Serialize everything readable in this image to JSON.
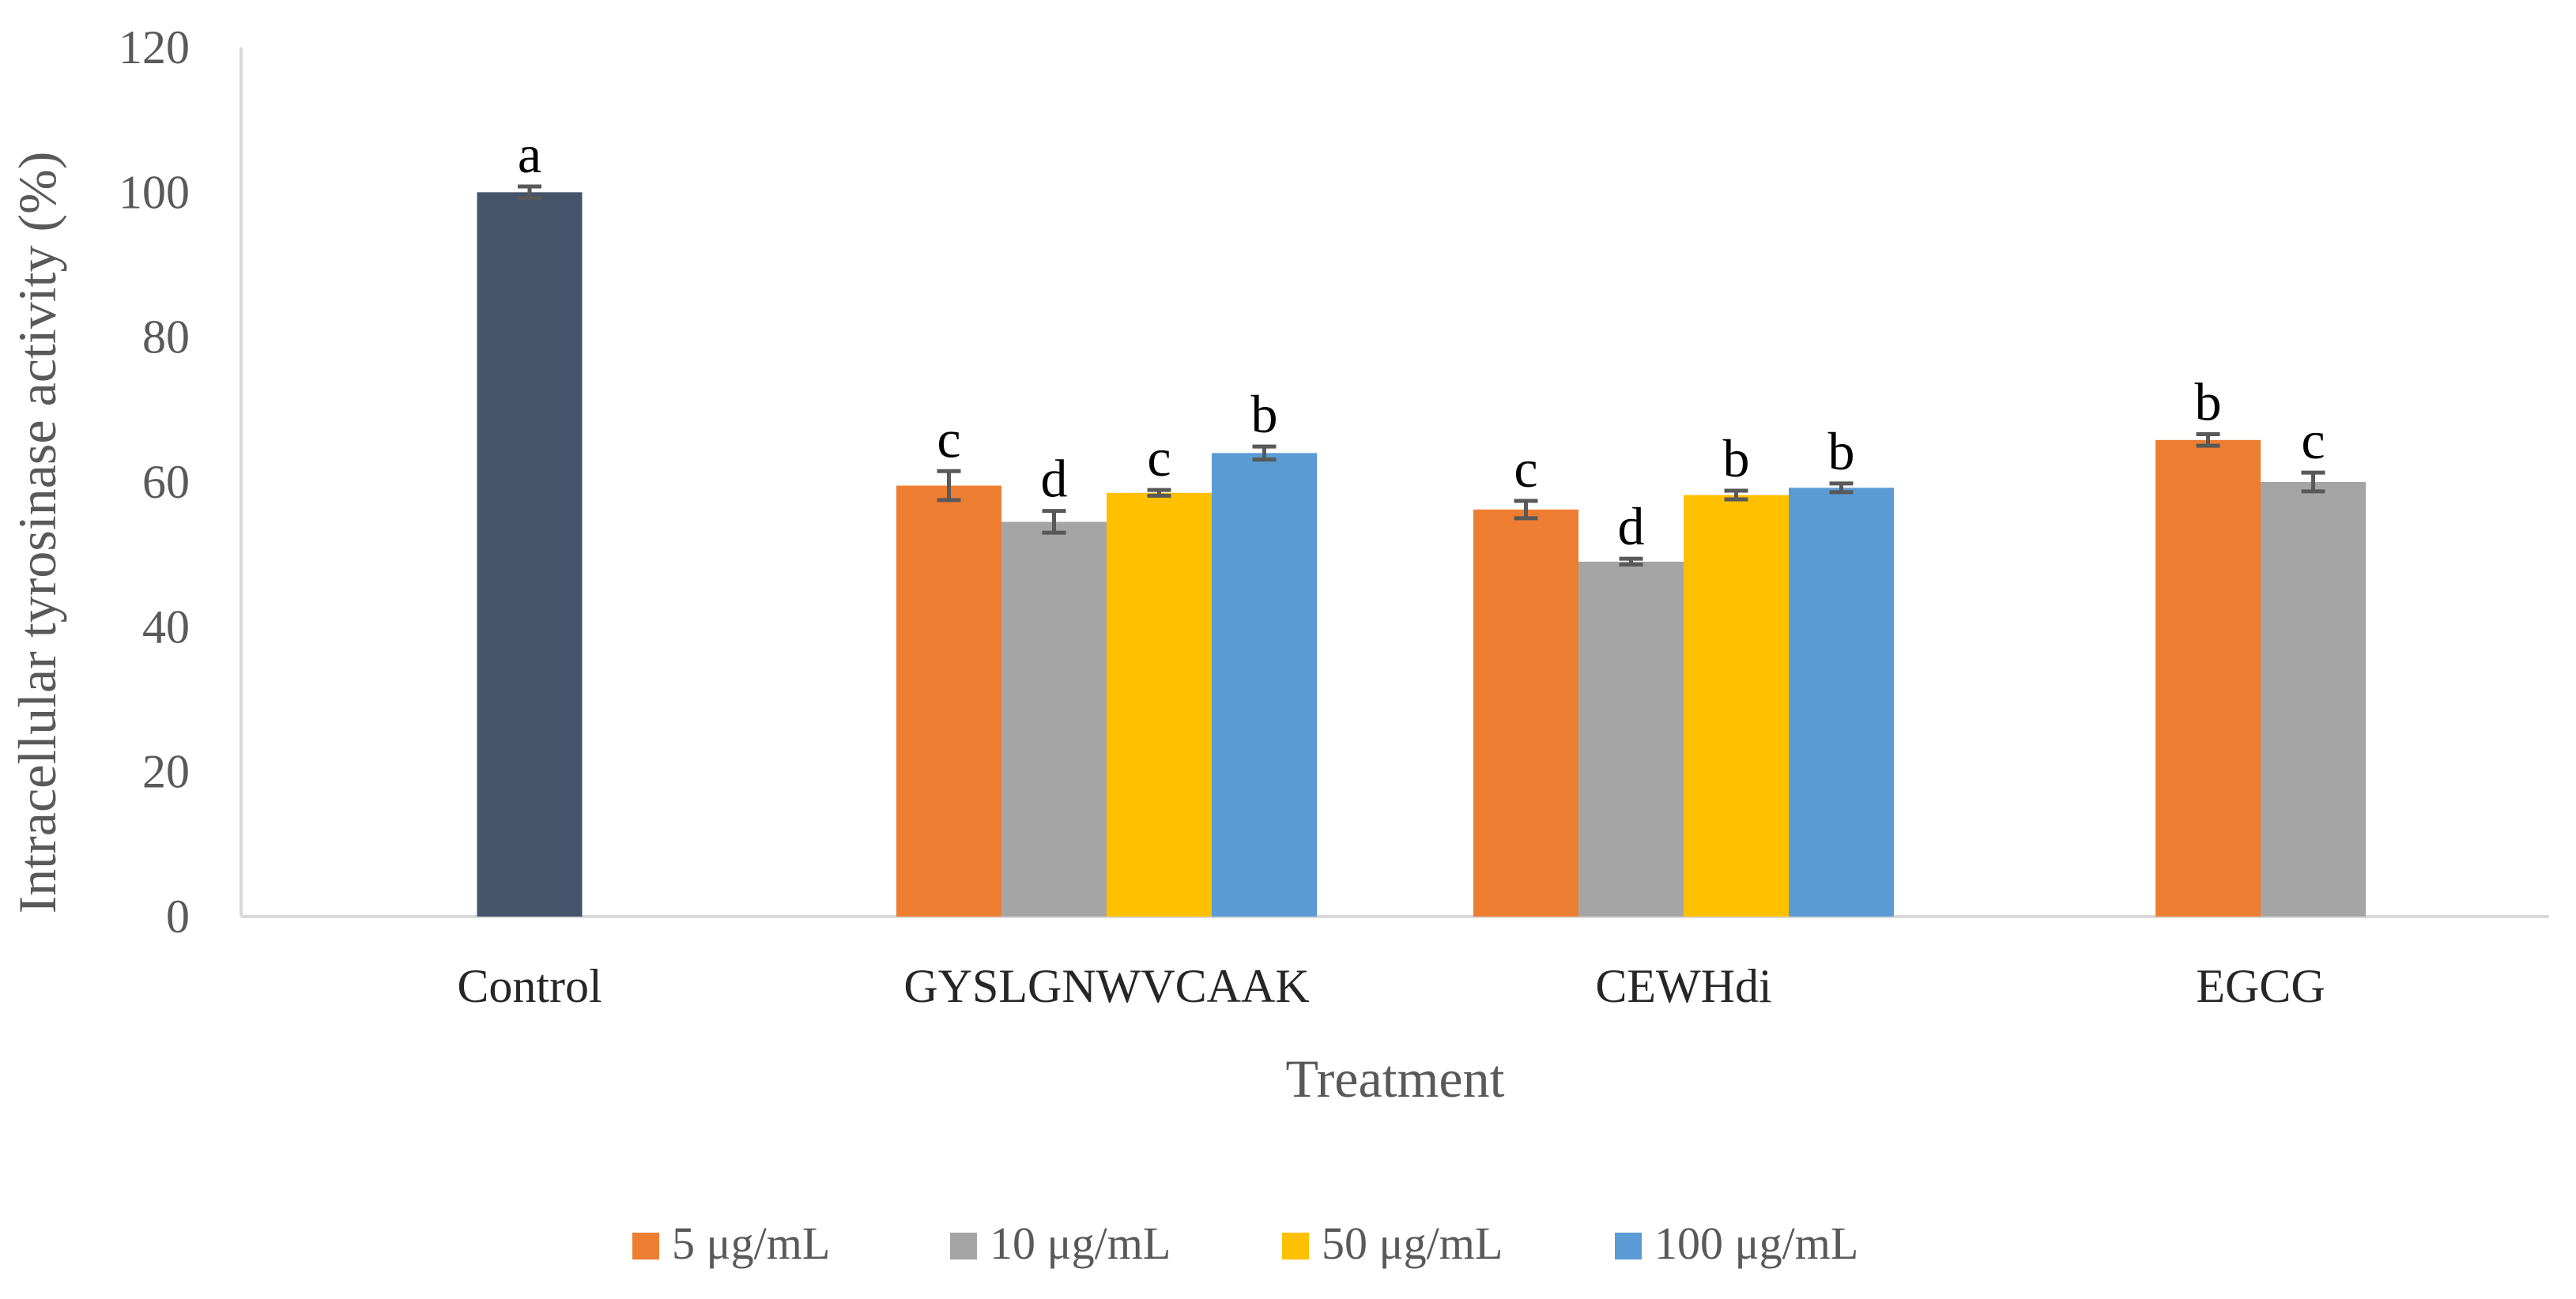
{
  "chart_data": {
    "type": "bar",
    "title": "",
    "xlabel": "Treatment",
    "ylabel": "Intracellular tyrosinase activity (%)",
    "ylim": [
      0,
      120
    ],
    "yticks": [
      0,
      20,
      40,
      60,
      80,
      100,
      120
    ],
    "grid": false,
    "legend_position": "bottom",
    "categories": [
      "Control",
      "GYSLGNWVCAAK",
      "CEWHdi",
      "EGCG"
    ],
    "control": {
      "value": 100,
      "error": 0.8,
      "label": "a",
      "color": "#44546A"
    },
    "series": [
      {
        "name": "5 μg/mL",
        "color": "#ED7D31",
        "values": [
          null,
          59.5,
          56.2,
          65.8
        ],
        "errors": [
          null,
          2.0,
          1.2,
          0.8
        ],
        "labels": [
          null,
          "c",
          "c",
          "b"
        ]
      },
      {
        "name": "10 μg/mL",
        "color": "#A5A5A5",
        "values": [
          null,
          54.5,
          49.0,
          60.0
        ],
        "errors": [
          null,
          1.5,
          0.4,
          1.3
        ],
        "labels": [
          null,
          "d",
          "d",
          "c"
        ]
      },
      {
        "name": "50 μg/mL",
        "color": "#FFC000",
        "values": [
          null,
          58.5,
          58.2,
          null
        ],
        "errors": [
          null,
          0.4,
          0.6,
          null
        ],
        "labels": [
          null,
          "c",
          "b",
          null
        ]
      },
      {
        "name": "100 μg/mL",
        "color": "#5B9BD5",
        "values": [
          null,
          64.0,
          59.2,
          null
        ],
        "errors": [
          null,
          0.9,
          0.6,
          null
        ],
        "labels": [
          null,
          "b",
          "b",
          null
        ]
      }
    ]
  }
}
